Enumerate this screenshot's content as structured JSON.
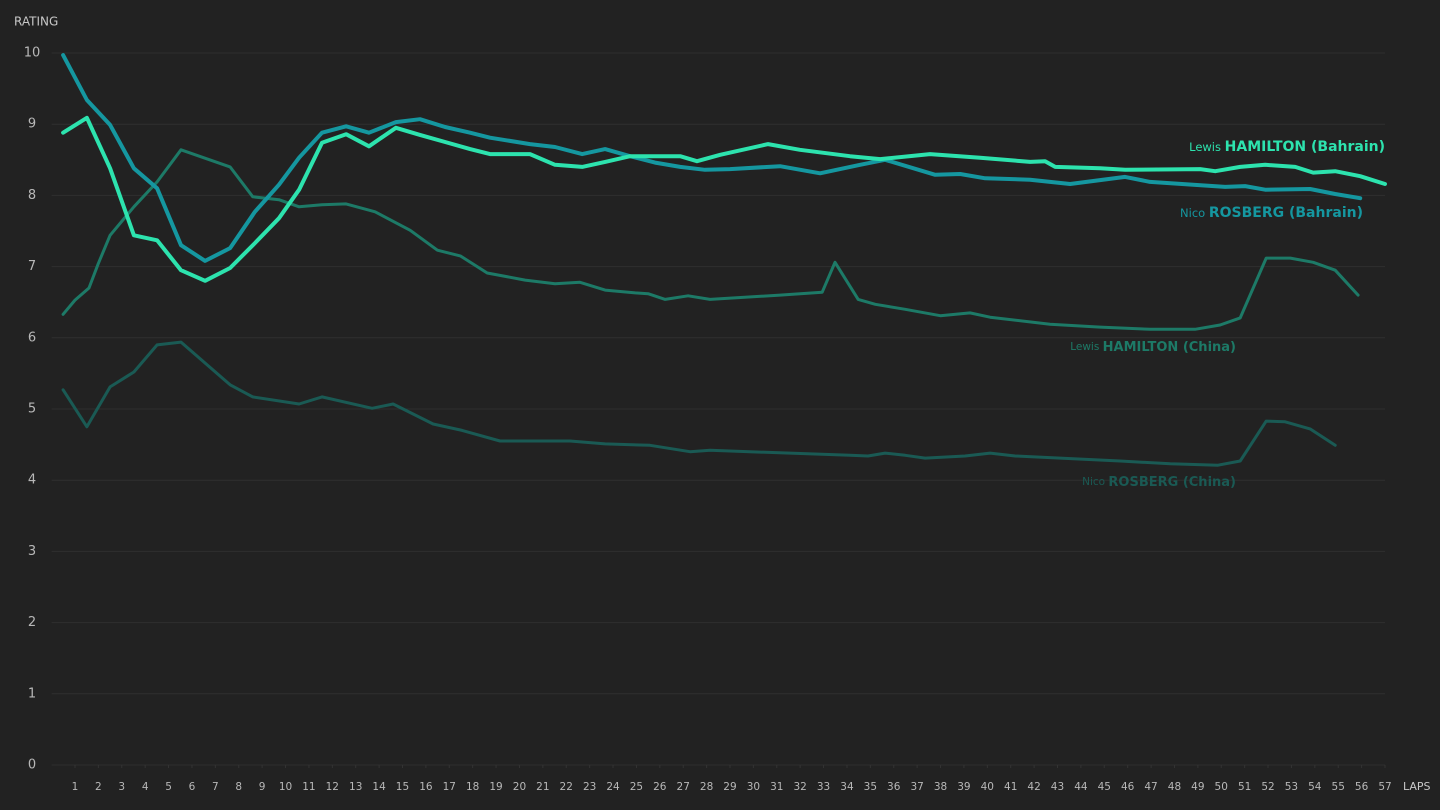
{
  "chart_data": {
    "type": "line",
    "y_label": "RATING",
    "x_label": "LAPS",
    "xlim": [
      0,
      57
    ],
    "ylim": [
      0,
      10
    ],
    "xticks": [
      1,
      2,
      3,
      4,
      5,
      6,
      7,
      8,
      9,
      10,
      11,
      12,
      13,
      14,
      15,
      16,
      17,
      18,
      19,
      20,
      21,
      22,
      23,
      24,
      25,
      26,
      27,
      28,
      29,
      30,
      31,
      32,
      33,
      34,
      35,
      36,
      37,
      38,
      39,
      40,
      41,
      42,
      43,
      44,
      45,
      46,
      47,
      48,
      49,
      50,
      51,
      52,
      53,
      54,
      55,
      56,
      57
    ],
    "yticks": [
      0,
      1,
      2,
      3,
      4,
      5,
      6,
      7,
      8,
      9,
      10
    ],
    "grid": true,
    "series": [
      {
        "name": "Lewis HAMILTON (Bahrain)",
        "color": "#2de3ae",
        "width": 4,
        "x": [
          0.49,
          1.51,
          2.5,
          3.52,
          4.51,
          5.53,
          6.56,
          7.63,
          8.69,
          9.72,
          10.58,
          11.56,
          12.59,
          13.57,
          14.72,
          15.75,
          16.82,
          17.89,
          18.74,
          20.45,
          21.52,
          22.68,
          23.66,
          24.73,
          26.87,
          27.59,
          28.58,
          30.63,
          31.99,
          34.13,
          35.42,
          37.55,
          39.69,
          41.83,
          42.47,
          42.9,
          44.82,
          45.89,
          49.1,
          49.74,
          50.81,
          51.88,
          53.16,
          53.93,
          54.87,
          55.94,
          57
        ],
        "values": [
          8.88,
          9.09,
          8.38,
          7.44,
          7.37,
          6.95,
          6.8,
          6.98,
          7.33,
          7.68,
          8.08,
          8.74,
          8.86,
          8.69,
          8.95,
          8.85,
          8.75,
          8.65,
          8.58,
          8.58,
          8.43,
          8.4,
          8.47,
          8.55,
          8.55,
          8.48,
          8.57,
          8.72,
          8.64,
          8.55,
          8.51,
          8.58,
          8.53,
          8.47,
          8.48,
          8.4,
          8.38,
          8.36,
          8.37,
          8.34,
          8.4,
          8.43,
          8.4,
          8.32,
          8.34,
          8.27,
          8.16
        ]
      },
      {
        "name": "Nico ROSBERG (Bahrain)",
        "color": "#1597a0",
        "width": 4,
        "x": [
          0.49,
          1.51,
          2.5,
          3.52,
          4.51,
          5.53,
          6.56,
          7.63,
          8.69,
          9.72,
          10.58,
          11.56,
          12.59,
          13.57,
          14.72,
          15.75,
          16.82,
          17.89,
          18.74,
          20.45,
          21.52,
          22.68,
          23.66,
          24.73,
          25.8,
          26.87,
          27.93,
          29,
          31.14,
          32.85,
          34.56,
          35.63,
          37.77,
          38.84,
          39.91,
          41.83,
          43.54,
          45.89,
          46.96,
          50.17,
          51.02,
          51.88,
          53.8,
          54.87,
          55.94
        ],
        "values": [
          9.97,
          9.34,
          8.99,
          8.38,
          8.1,
          7.3,
          7.08,
          7.26,
          7.77,
          8.15,
          8.53,
          8.88,
          8.97,
          8.88,
          9.03,
          9.07,
          8.96,
          8.88,
          8.81,
          8.72,
          8.68,
          8.58,
          8.65,
          8.55,
          8.46,
          8.4,
          8.36,
          8.37,
          8.41,
          8.31,
          8.43,
          8.5,
          8.29,
          8.3,
          8.24,
          8.22,
          8.16,
          8.26,
          8.19,
          8.12,
          8.13,
          8.08,
          8.09,
          8.02,
          7.96
        ]
      },
      {
        "name": "Lewis HAMILTON (China)",
        "color": "#1d7a67",
        "width": 3,
        "x": [
          0.49,
          1,
          1.6,
          1.99,
          2.5,
          3.52,
          4.51,
          5.53,
          7.63,
          8.6,
          9.72,
          10.58,
          11.56,
          12.59,
          13.83,
          15.33,
          16.49,
          17.47,
          18.62,
          20.24,
          21.52,
          22.59,
          23.66,
          24.95,
          25.5,
          26.23,
          27.21,
          28.15,
          31.14,
          32.94,
          33.49,
          34.48,
          35.21,
          36.49,
          37.99,
          39.26,
          40.12,
          42.68,
          44.82,
          46.96,
          48.88,
          49.95,
          50.81,
          51.92,
          52.95,
          53.93,
          54.87,
          55.85
        ],
        "values": [
          6.33,
          6.53,
          6.7,
          7.04,
          7.44,
          7.84,
          8.19,
          8.64,
          8.4,
          7.98,
          7.94,
          7.84,
          7.87,
          7.88,
          7.77,
          7.51,
          7.23,
          7.15,
          6.91,
          6.81,
          6.76,
          6.78,
          6.67,
          6.63,
          6.62,
          6.54,
          6.59,
          6.54,
          6.6,
          6.64,
          7.06,
          6.54,
          6.47,
          6.4,
          6.31,
          6.35,
          6.29,
          6.19,
          6.15,
          6.12,
          6.12,
          6.18,
          6.28,
          7.12,
          7.12,
          7.06,
          6.95,
          6.6
        ]
      },
      {
        "name": "Nico ROSBERG (China)",
        "color": "#1a5a54",
        "width": 3,
        "x": [
          0.49,
          1.51,
          2.5,
          3.52,
          4.51,
          5.53,
          7.63,
          8.6,
          10.58,
          11.56,
          13.7,
          14.6,
          16.31,
          17.55,
          19.17,
          22.16,
          23.66,
          25.58,
          27.29,
          28.15,
          34.13,
          34.9,
          35.63,
          36.49,
          37.34,
          39.05,
          40.12,
          41.19,
          45.68,
          47.82,
          49.86,
          50.81,
          51.92,
          52.73,
          53.8,
          54.87
        ],
        "values": [
          5.27,
          4.75,
          5.31,
          5.52,
          5.9,
          5.94,
          5.34,
          5.17,
          5.07,
          5.17,
          5.01,
          5.07,
          4.79,
          4.7,
          4.55,
          4.55,
          4.51,
          4.49,
          4.4,
          4.42,
          4.35,
          4.34,
          4.38,
          4.35,
          4.31,
          4.34,
          4.38,
          4.34,
          4.27,
          4.23,
          4.21,
          4.27,
          4.83,
          4.82,
          4.72,
          4.49
        ]
      }
    ]
  }
}
